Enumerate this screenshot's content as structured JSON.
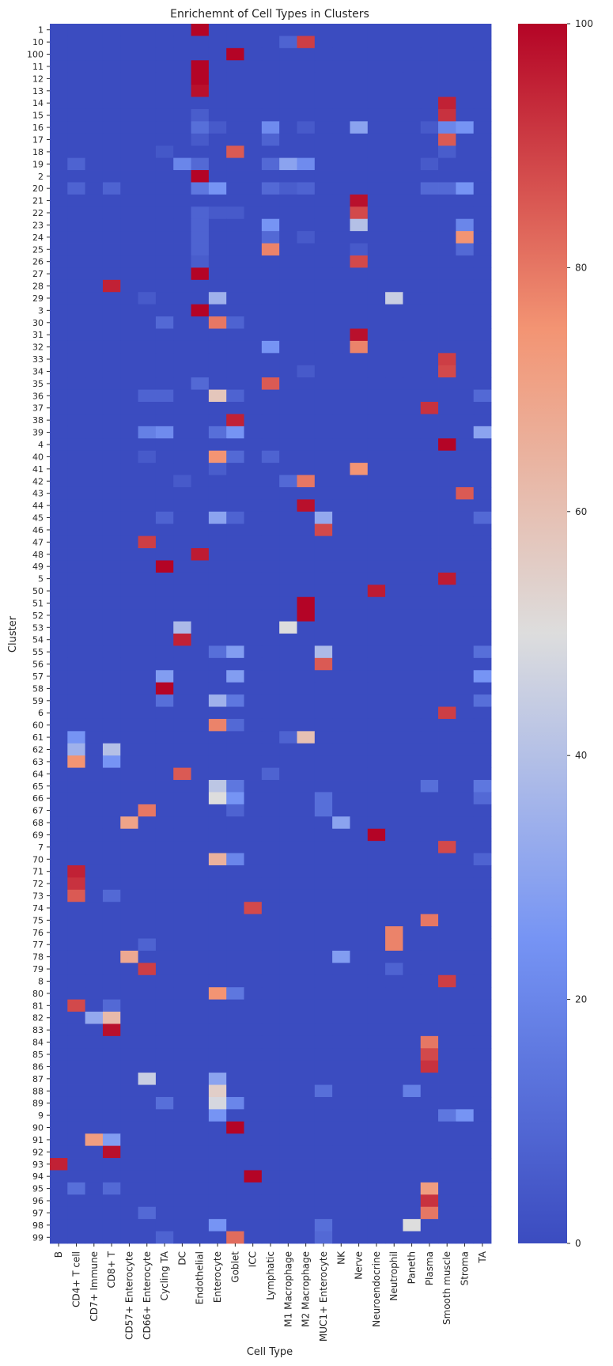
{
  "chart_data": {
    "type": "heatmap",
    "title": "Enrichemnt of Cell Types in Clusters",
    "xlabel": "Cell Type",
    "ylabel": "Cluster",
    "colormap": "coolwarm",
    "low_color": "#3b4cc0",
    "mid_color": "#dddddd",
    "high_color": "#b40426",
    "colorbar": {
      "min": 0,
      "max": 100,
      "ticks": [
        "0",
        "20",
        "40",
        "60",
        "80",
        "100"
      ]
    },
    "columns": [
      "B",
      "CD4+ T cell",
      "CD7+ Immune",
      "CD8+ T",
      "CD57+ Enterocyte",
      "CD66+ Enterocyte",
      "Cycling TA",
      "DC",
      "Endothelial",
      "Enterocyte",
      "Goblet",
      "ICC",
      "Lymphatic",
      "M1 Macrophage",
      "M2 Macrophage",
      "MUC1+ Enterocyte",
      "NK",
      "Nerve",
      "Neuroendocrine",
      "Neutrophil",
      "Paneth",
      "Plasma",
      "Smooth muscle",
      "Stroma",
      "TA"
    ],
    "rows": [
      "1",
      "10",
      "100",
      "11",
      "12",
      "13",
      "14",
      "15",
      "16",
      "17",
      "18",
      "19",
      "2",
      "20",
      "21",
      "22",
      "23",
      "24",
      "25",
      "26",
      "27",
      "28",
      "29",
      "3",
      "30",
      "31",
      "32",
      "33",
      "34",
      "35",
      "36",
      "37",
      "38",
      "39",
      "4",
      "40",
      "41",
      "42",
      "43",
      "44",
      "45",
      "46",
      "47",
      "48",
      "49",
      "5",
      "50",
      "51",
      "52",
      "53",
      "54",
      "55",
      "56",
      "57",
      "58",
      "59",
      "6",
      "60",
      "61",
      "62",
      "63",
      "64",
      "65",
      "66",
      "67",
      "68",
      "69",
      "7",
      "70",
      "71",
      "72",
      "73",
      "74",
      "75",
      "76",
      "77",
      "78",
      "79",
      "8",
      "80",
      "81",
      "82",
      "83",
      "84",
      "85",
      "86",
      "87",
      "88",
      "89",
      "9",
      "90",
      "91",
      "92",
      "93",
      "94",
      "95",
      "96",
      "97",
      "98",
      "99"
    ],
    "cells": [
      {
        "r": "1",
        "c": "Endothelial",
        "v": 100
      },
      {
        "r": "10",
        "c": "M1 Macrophage",
        "v": 8
      },
      {
        "r": "10",
        "c": "M2 Macrophage",
        "v": 90
      },
      {
        "r": "100",
        "c": "Goblet",
        "v": 100
      },
      {
        "r": "11",
        "c": "Endothelial",
        "v": 100
      },
      {
        "r": "12",
        "c": "Endothelial",
        "v": 100
      },
      {
        "r": "13",
        "c": "Endothelial",
        "v": 98
      },
      {
        "r": "14",
        "c": "Smooth muscle",
        "v": 95
      },
      {
        "r": "15",
        "c": "Endothelial",
        "v": 6
      },
      {
        "r": "15",
        "c": "Smooth muscle",
        "v": 92
      },
      {
        "r": "16",
        "c": "Endothelial",
        "v": 12
      },
      {
        "r": "16",
        "c": "Enterocyte",
        "v": 5
      },
      {
        "r": "16",
        "c": "Lymphatic",
        "v": 22
      },
      {
        "r": "16",
        "c": "M2 Macrophage",
        "v": 5
      },
      {
        "r": "16",
        "c": "Nerve",
        "v": 30
      },
      {
        "r": "16",
        "c": "Plasma",
        "v": 5
      },
      {
        "r": "16",
        "c": "Smooth muscle",
        "v": 20
      },
      {
        "r": "16",
        "c": "Stroma",
        "v": 25
      },
      {
        "r": "17",
        "c": "Endothelial",
        "v": 5
      },
      {
        "r": "17",
        "c": "Lymphatic",
        "v": 8
      },
      {
        "r": "17",
        "c": "Smooth muscle",
        "v": 85
      },
      {
        "r": "18",
        "c": "Goblet",
        "v": 85
      },
      {
        "r": "18",
        "c": "Cycling TA",
        "v": 4
      },
      {
        "r": "18",
        "c": "Smooth muscle",
        "v": 6
      },
      {
        "r": "19",
        "c": "CD4+ T cell",
        "v": 8
      },
      {
        "r": "19",
        "c": "DC",
        "v": 20
      },
      {
        "r": "19",
        "c": "Endothelial",
        "v": 10
      },
      {
        "r": "19",
        "c": "Lymphatic",
        "v": 10
      },
      {
        "r": "19",
        "c": "M1 Macrophage",
        "v": 30
      },
      {
        "r": "19",
        "c": "M2 Macrophage",
        "v": 22
      },
      {
        "r": "19",
        "c": "Plasma",
        "v": 5
      },
      {
        "r": "2",
        "c": "Endothelial",
        "v": 100
      },
      {
        "r": "20",
        "c": "CD4+ T cell",
        "v": 8
      },
      {
        "r": "20",
        "c": "CD8+ T",
        "v": 8
      },
      {
        "r": "20",
        "c": "Endothelial",
        "v": 15
      },
      {
        "r": "20",
        "c": "Enterocyte",
        "v": 25
      },
      {
        "r": "20",
        "c": "Lymphatic",
        "v": 10
      },
      {
        "r": "20",
        "c": "M1 Macrophage",
        "v": 6
      },
      {
        "r": "20",
        "c": "M2 Macrophage",
        "v": 8
      },
      {
        "r": "20",
        "c": "Plasma",
        "v": 10
      },
      {
        "r": "20",
        "c": "Smooth muscle",
        "v": 10
      },
      {
        "r": "20",
        "c": "Stroma",
        "v": 25
      },
      {
        "r": "21",
        "c": "Nerve",
        "v": 98
      },
      {
        "r": "22",
        "c": "Endothelial",
        "v": 8
      },
      {
        "r": "22",
        "c": "Enterocyte",
        "v": 5
      },
      {
        "r": "22",
        "c": "Goblet",
        "v": 5
      },
      {
        "r": "22",
        "c": "Nerve",
        "v": 88
      },
      {
        "r": "23",
        "c": "Endothelial",
        "v": 8
      },
      {
        "r": "23",
        "c": "Lymphatic",
        "v": 25
      },
      {
        "r": "23",
        "c": "Nerve",
        "v": 40
      },
      {
        "r": "23",
        "c": "Stroma",
        "v": 20
      },
      {
        "r": "24",
        "c": "Endothelial",
        "v": 8
      },
      {
        "r": "24",
        "c": "Lymphatic",
        "v": 10
      },
      {
        "r": "24",
        "c": "M2 Macrophage",
        "v": 5
      },
      {
        "r": "24",
        "c": "Stroma",
        "v": 75
      },
      {
        "r": "25",
        "c": "Endothelial",
        "v": 8
      },
      {
        "r": "25",
        "c": "Lymphatic",
        "v": 78
      },
      {
        "r": "25",
        "c": "Nerve",
        "v": 5
      },
      {
        "r": "25",
        "c": "Stroma",
        "v": 10
      },
      {
        "r": "26",
        "c": "Endothelial",
        "v": 6
      },
      {
        "r": "26",
        "c": "Nerve",
        "v": 88
      },
      {
        "r": "27",
        "c": "Endothelial",
        "v": 100
      },
      {
        "r": "28",
        "c": "CD8+ T",
        "v": 95
      },
      {
        "r": "29",
        "c": "Enterocyte",
        "v": 35
      },
      {
        "r": "29",
        "c": "CD66+ Enterocyte",
        "v": 5
      },
      {
        "r": "29",
        "c": "Neutrophil",
        "v": 45
      },
      {
        "r": "3",
        "c": "Endothelial",
        "v": 100
      },
      {
        "r": "30",
        "c": "Enterocyte",
        "v": 80
      },
      {
        "r": "30",
        "c": "Cycling TA",
        "v": 10
      },
      {
        "r": "30",
        "c": "Goblet",
        "v": 8
      },
      {
        "r": "31",
        "c": "Nerve",
        "v": 98
      },
      {
        "r": "32",
        "c": "Lymphatic",
        "v": 25
      },
      {
        "r": "32",
        "c": "Nerve",
        "v": 78
      },
      {
        "r": "33",
        "c": "Smooth muscle",
        "v": 90
      },
      {
        "r": "34",
        "c": "Smooth muscle",
        "v": 88
      },
      {
        "r": "34",
        "c": "M2 Macrophage",
        "v": 5
      },
      {
        "r": "35",
        "c": "Endothelial",
        "v": 10
      },
      {
        "r": "35",
        "c": "Lymphatic",
        "v": 85
      },
      {
        "r": "36",
        "c": "Enterocyte",
        "v": 58
      },
      {
        "r": "36",
        "c": "CD66+ Enterocyte",
        "v": 8
      },
      {
        "r": "36",
        "c": "Cycling TA",
        "v": 8
      },
      {
        "r": "36",
        "c": "Goblet",
        "v": 8
      },
      {
        "r": "36",
        "c": "TA",
        "v": 10
      },
      {
        "r": "37",
        "c": "Plasma",
        "v": 92
      },
      {
        "r": "38",
        "c": "Goblet",
        "v": 95
      },
      {
        "r": "39",
        "c": "CD66+ Enterocyte",
        "v": 18
      },
      {
        "r": "39",
        "c": "Cycling TA",
        "v": 22
      },
      {
        "r": "39",
        "c": "Enterocyte",
        "v": 12
      },
      {
        "r": "39",
        "c": "Goblet",
        "v": 25
      },
      {
        "r": "39",
        "c": "TA",
        "v": 30
      },
      {
        "r": "4",
        "c": "Smooth muscle",
        "v": 100
      },
      {
        "r": "40",
        "c": "Enterocyte",
        "v": 75
      },
      {
        "r": "40",
        "c": "Goblet",
        "v": 10
      },
      {
        "r": "40",
        "c": "Lymphatic",
        "v": 8
      },
      {
        "r": "40",
        "c": "CD66+ Enterocyte",
        "v": 5
      },
      {
        "r": "41",
        "c": "Nerve",
        "v": 75
      },
      {
        "r": "41",
        "c": "Enterocyte",
        "v": 6
      },
      {
        "r": "42",
        "c": "M2 Macrophage",
        "v": 80
      },
      {
        "r": "42",
        "c": "M1 Macrophage",
        "v": 10
      },
      {
        "r": "42",
        "c": "DC",
        "v": 5
      },
      {
        "r": "43",
        "c": "Stroma",
        "v": 85
      },
      {
        "r": "44",
        "c": "M2 Macrophage",
        "v": 98
      },
      {
        "r": "45",
        "c": "Enterocyte",
        "v": 30
      },
      {
        "r": "45",
        "c": "MUC1+ Enterocyte",
        "v": 32
      },
      {
        "r": "45",
        "c": "Cycling TA",
        "v": 8
      },
      {
        "r": "45",
        "c": "Goblet",
        "v": 8
      },
      {
        "r": "45",
        "c": "TA",
        "v": 10
      },
      {
        "r": "46",
        "c": "MUC1+ Enterocyte",
        "v": 88
      },
      {
        "r": "47",
        "c": "CD66+ Enterocyte",
        "v": 90
      },
      {
        "r": "48",
        "c": "Endothelial",
        "v": 96
      },
      {
        "r": "49",
        "c": "Cycling TA",
        "v": 100
      },
      {
        "r": "5",
        "c": "Smooth muscle",
        "v": 96
      },
      {
        "r": "50",
        "c": "Neuroendocrine",
        "v": 96
      },
      {
        "r": "51",
        "c": "M2 Macrophage",
        "v": 100
      },
      {
        "r": "52",
        "c": "M2 Macrophage",
        "v": 100
      },
      {
        "r": "53",
        "c": "DC",
        "v": 38
      },
      {
        "r": "53",
        "c": "M1 Macrophage",
        "v": 50
      },
      {
        "r": "54",
        "c": "DC",
        "v": 95
      },
      {
        "r": "55",
        "c": "Enterocyte",
        "v": 12
      },
      {
        "r": "55",
        "c": "Goblet",
        "v": 28
      },
      {
        "r": "55",
        "c": "MUC1+ Enterocyte",
        "v": 38
      },
      {
        "r": "55",
        "c": "TA",
        "v": 12
      },
      {
        "r": "56",
        "c": "MUC1+ Enterocyte",
        "v": 85
      },
      {
        "r": "57",
        "c": "Cycling TA",
        "v": 28
      },
      {
        "r": "57",
        "c": "Goblet",
        "v": 28
      },
      {
        "r": "57",
        "c": "TA",
        "v": 25
      },
      {
        "r": "58",
        "c": "Cycling TA",
        "v": 100
      },
      {
        "r": "59",
        "c": "Enterocyte",
        "v": 35
      },
      {
        "r": "59",
        "c": "Cycling TA",
        "v": 12
      },
      {
        "r": "59",
        "c": "Goblet",
        "v": 15
      },
      {
        "r": "59",
        "c": "TA",
        "v": 12
      },
      {
        "r": "6",
        "c": "Smooth muscle",
        "v": 90
      },
      {
        "r": "60",
        "c": "Enterocyte",
        "v": 78
      },
      {
        "r": "60",
        "c": "Goblet",
        "v": 10
      },
      {
        "r": "61",
        "c": "CD4+ T cell",
        "v": 25
      },
      {
        "r": "61",
        "c": "M2 Macrophage",
        "v": 60
      },
      {
        "r": "61",
        "c": "M1 Macrophage",
        "v": 8
      },
      {
        "r": "62",
        "c": "CD4+ T cell",
        "v": 35
      },
      {
        "r": "62",
        "c": "CD8+ T",
        "v": 40
      },
      {
        "r": "63",
        "c": "CD4+ T cell",
        "v": 75
      },
      {
        "r": "63",
        "c": "CD8+ T",
        "v": 25
      },
      {
        "r": "64",
        "c": "DC",
        "v": 85
      },
      {
        "r": "64",
        "c": "Lymphatic",
        "v": 8
      },
      {
        "r": "65",
        "c": "Enterocyte",
        "v": 42
      },
      {
        "r": "65",
        "c": "Goblet",
        "v": 15
      },
      {
        "r": "65",
        "c": "Plasma",
        "v": 12
      },
      {
        "r": "65",
        "c": "TA",
        "v": 15
      },
      {
        "r": "66",
        "c": "Enterocyte",
        "v": 50
      },
      {
        "r": "66",
        "c": "Goblet",
        "v": 25
      },
      {
        "r": "66",
        "c": "MUC1+ Enterocyte",
        "v": 12
      },
      {
        "r": "66",
        "c": "TA",
        "v": 10
      },
      {
        "r": "67",
        "c": "CD66+ Enterocyte",
        "v": 80
      },
      {
        "r": "67",
        "c": "Goblet",
        "v": 8
      },
      {
        "r": "67",
        "c": "MUC1+ Enterocyte",
        "v": 12
      },
      {
        "r": "68",
        "c": "CD57+ Enterocyte",
        "v": 70
      },
      {
        "r": "68",
        "c": "NK",
        "v": 30
      },
      {
        "r": "69",
        "c": "Neuroendocrine",
        "v": 100
      },
      {
        "r": "7",
        "c": "Smooth muscle",
        "v": 88
      },
      {
        "r": "70",
        "c": "Enterocyte",
        "v": 65
      },
      {
        "r": "70",
        "c": "Goblet",
        "v": 20
      },
      {
        "r": "70",
        "c": "TA",
        "v": 8
      },
      {
        "r": "71",
        "c": "CD4+ T cell",
        "v": 95
      },
      {
        "r": "72",
        "c": "CD4+ T cell",
        "v": 92
      },
      {
        "r": "73",
        "c": "CD4+ T cell",
        "v": 85
      },
      {
        "r": "73",
        "c": "CD8+ T",
        "v": 10
      },
      {
        "r": "74",
        "c": "ICC",
        "v": 88
      },
      {
        "r": "75",
        "c": "Plasma",
        "v": 80
      },
      {
        "r": "76",
        "c": "Neutrophil",
        "v": 78
      },
      {
        "r": "77",
        "c": "Neutrophil",
        "v": 78
      },
      {
        "r": "77",
        "c": "CD66+ Enterocyte",
        "v": 8
      },
      {
        "r": "78",
        "c": "CD57+ Enterocyte",
        "v": 68
      },
      {
        "r": "78",
        "c": "NK",
        "v": 28
      },
      {
        "r": "79",
        "c": "CD66+ Enterocyte",
        "v": 90
      },
      {
        "r": "79",
        "c": "Neutrophil",
        "v": 8
      },
      {
        "r": "8",
        "c": "Smooth muscle",
        "v": 90
      },
      {
        "r": "80",
        "c": "Enterocyte",
        "v": 75
      },
      {
        "r": "80",
        "c": "Goblet",
        "v": 15
      },
      {
        "r": "81",
        "c": "CD4+ T cell",
        "v": 88
      },
      {
        "r": "81",
        "c": "CD8+ T",
        "v": 10
      },
      {
        "r": "82",
        "c": "CD7+ Immune",
        "v": 32
      },
      {
        "r": "82",
        "c": "CD8+ T",
        "v": 62
      },
      {
        "r": "83",
        "c": "CD8+ T",
        "v": 98
      },
      {
        "r": "84",
        "c": "Plasma",
        "v": 80
      },
      {
        "r": "85",
        "c": "Plasma",
        "v": 88
      },
      {
        "r": "86",
        "c": "Plasma",
        "v": 92
      },
      {
        "r": "87",
        "c": "CD66+ Enterocyte",
        "v": 45
      },
      {
        "r": "87",
        "c": "Enterocyte",
        "v": 30
      },
      {
        "r": "88",
        "c": "Enterocyte",
        "v": 55
      },
      {
        "r": "88",
        "c": "Paneth",
        "v": 18
      },
      {
        "r": "88",
        "c": "MUC1+ Enterocyte",
        "v": 12
      },
      {
        "r": "89",
        "c": "Enterocyte",
        "v": 48
      },
      {
        "r": "89",
        "c": "Cycling TA",
        "v": 12
      },
      {
        "r": "89",
        "c": "Goblet",
        "v": 20
      },
      {
        "r": "9",
        "c": "Enterocyte",
        "v": 25
      },
      {
        "r": "9",
        "c": "Smooth muscle",
        "v": 15
      },
      {
        "r": "9",
        "c": "Stroma",
        "v": 25
      },
      {
        "r": "90",
        "c": "Goblet",
        "v": 100
      },
      {
        "r": "91",
        "c": "CD7+ Immune",
        "v": 72
      },
      {
        "r": "91",
        "c": "CD8+ T",
        "v": 28
      },
      {
        "r": "92",
        "c": "CD8+ T",
        "v": 98
      },
      {
        "r": "93",
        "c": "B",
        "v": 95
      },
      {
        "r": "94",
        "c": "ICC",
        "v": 100
      },
      {
        "r": "95",
        "c": "Plasma",
        "v": 72
      },
      {
        "r": "95",
        "c": "CD4+ T cell",
        "v": 12
      },
      {
        "r": "95",
        "c": "CD8+ T",
        "v": 10
      },
      {
        "r": "96",
        "c": "Plasma",
        "v": 92
      },
      {
        "r": "97",
        "c": "Plasma",
        "v": 80
      },
      {
        "r": "97",
        "c": "CD66+ Enterocyte",
        "v": 10
      },
      {
        "r": "98",
        "c": "Paneth",
        "v": 50
      },
      {
        "r": "98",
        "c": "Enterocyte",
        "v": 25
      },
      {
        "r": "98",
        "c": "MUC1+ Enterocyte",
        "v": 12
      },
      {
        "r": "99",
        "c": "Goblet",
        "v": 82
      },
      {
        "r": "99",
        "c": "MUC1+ Enterocyte",
        "v": 10
      },
      {
        "r": "99",
        "c": "Cycling TA",
        "v": 8
      }
    ]
  }
}
